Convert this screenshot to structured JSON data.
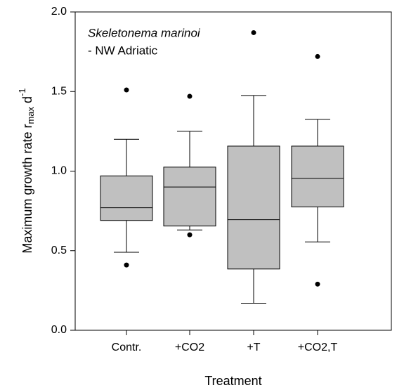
{
  "chart_data": {
    "type": "box",
    "annotations": [
      "Skeletonema marinoi",
      "- NW Adriatic"
    ],
    "xlabel": "Treatment",
    "ylabel": {
      "main": "Maximum growth rate r",
      "sub": "max",
      "mid": " d",
      "sup": "-1"
    },
    "categories": [
      "Contr.",
      "+CO2",
      "+T",
      "+CO2,T"
    ],
    "boxes": [
      {
        "min": 0.49,
        "q1": 0.69,
        "median": 0.77,
        "q3": 0.97,
        "max": 1.2,
        "outliers": [
          1.51,
          0.41
        ]
      },
      {
        "min": 0.63,
        "q1": 0.655,
        "median": 0.9,
        "q3": 1.025,
        "max": 1.25,
        "outliers": [
          1.47,
          0.6
        ]
      },
      {
        "min": 0.17,
        "q1": 0.385,
        "median": 0.695,
        "q3": 1.157,
        "max": 1.475,
        "outliers": [
          1.87
        ]
      },
      {
        "min": 0.555,
        "q1": 0.775,
        "median": 0.955,
        "q3": 1.157,
        "max": 1.325,
        "outliers": [
          1.72,
          0.29
        ]
      }
    ],
    "color": "#c0c0c0",
    "ylim": [
      0,
      2
    ],
    "yticks": [
      {
        "value": 0,
        "label": "0.0"
      },
      {
        "value": 0.5,
        "label": "0.5"
      },
      {
        "value": 1,
        "label": "1.0"
      },
      {
        "value": 1.5,
        "label": "1.5"
      },
      {
        "value": 2,
        "label": "2.0"
      }
    ]
  }
}
